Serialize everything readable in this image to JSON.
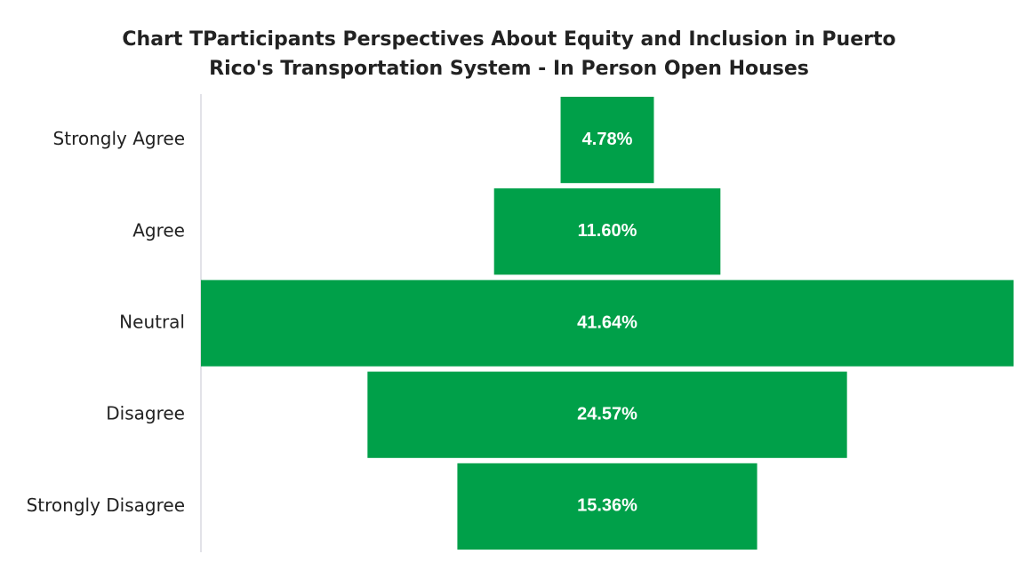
{
  "chart_data": {
    "type": "funnel",
    "title": "Chart TParticipants Perspectives About Equity and Inclusion in Puerto Rico's Transportation System - In Person Open Houses",
    "categories": [
      "Strongly Agree",
      "Agree",
      "Neutral",
      "Disagree",
      "Strongly Disagree"
    ],
    "values": [
      4.78,
      11.6,
      41.64,
      24.57,
      15.36
    ],
    "value_labels": [
      "4.78%",
      "11.60%",
      "41.64%",
      "24.57%",
      "15.36%"
    ],
    "color": "#00a049"
  }
}
